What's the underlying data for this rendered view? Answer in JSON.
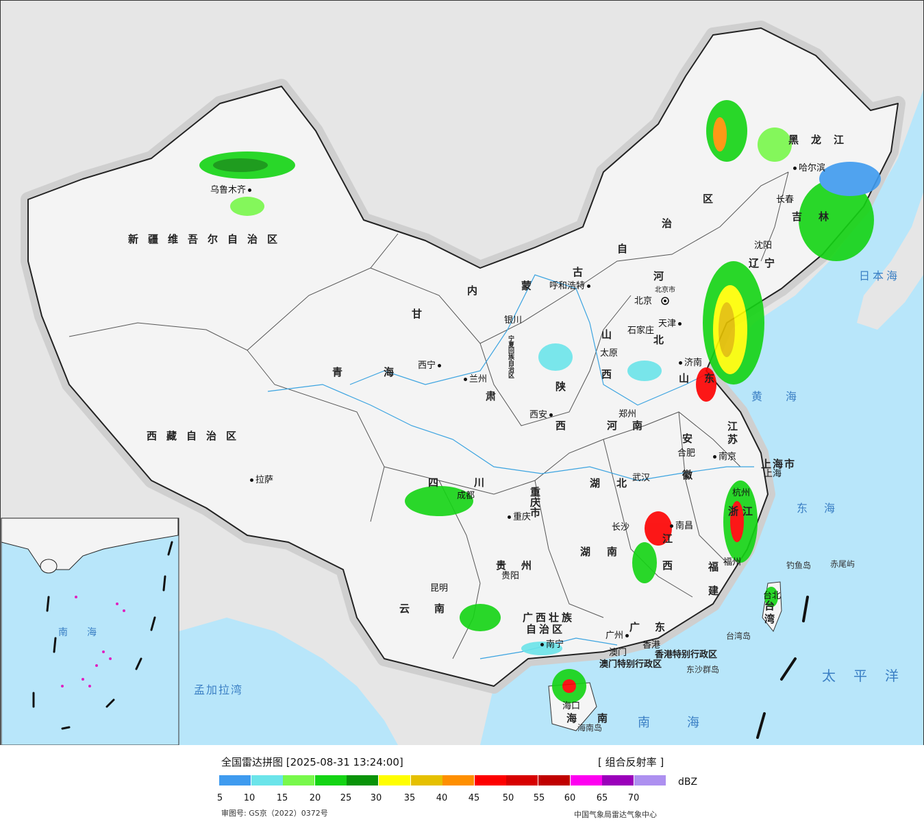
{
  "map": {
    "provinces": [
      {
        "id": "xinjiang",
        "text": "新疆维吾尔自治区"
      },
      {
        "id": "xizang",
        "text": "西藏自治区"
      },
      {
        "id": "qinghai",
        "text": "青海"
      },
      {
        "id": "gansu",
        "text": "甘"
      },
      {
        "id": "gansu2",
        "text": "肃"
      },
      {
        "id": "neimenggu1",
        "text": "内"
      },
      {
        "id": "neimenggu2",
        "text": "蒙"
      },
      {
        "id": "neimenggu3",
        "text": "古"
      },
      {
        "id": "neimenggu4",
        "text": "自"
      },
      {
        "id": "neimenggu5",
        "text": "治"
      },
      {
        "id": "neimenggu6",
        "text": "区"
      },
      {
        "id": "heilongjiang",
        "text": "黑龙江"
      },
      {
        "id": "jilin",
        "text": "吉林"
      },
      {
        "id": "liaoning",
        "text": "辽宁"
      },
      {
        "id": "hebei1",
        "text": "河"
      },
      {
        "id": "hebei2",
        "text": "北"
      },
      {
        "id": "shanxi1",
        "text": "山"
      },
      {
        "id": "shanxi2",
        "text": "西"
      },
      {
        "id": "shandong",
        "text": "山东"
      },
      {
        "id": "shaanxi1",
        "text": "陕"
      },
      {
        "id": "shaanxi2",
        "text": "西"
      },
      {
        "id": "henan",
        "text": "河南"
      },
      {
        "id": "jiangsu",
        "text": "江苏"
      },
      {
        "id": "anhui1",
        "text": "安"
      },
      {
        "id": "anhui2",
        "text": "徽"
      },
      {
        "id": "shanghai",
        "text": "上海市"
      },
      {
        "id": "zhejiang",
        "text": "浙江"
      },
      {
        "id": "hubei",
        "text": "湖北"
      },
      {
        "id": "sichuan",
        "text": "四川"
      },
      {
        "id": "chongqing",
        "text": "重庆市"
      },
      {
        "id": "hunan",
        "text": "湖南"
      },
      {
        "id": "jiangxi1",
        "text": "江"
      },
      {
        "id": "jiangxi2",
        "text": "西"
      },
      {
        "id": "fujian",
        "text": "福建"
      },
      {
        "id": "guizhou",
        "text": "贵州"
      },
      {
        "id": "yunnan",
        "text": "云南"
      },
      {
        "id": "guangxi1",
        "text": "广西壮族"
      },
      {
        "id": "guangxi2",
        "text": "自治区"
      },
      {
        "id": "guangdong",
        "text": "广东"
      },
      {
        "id": "hainan",
        "text": "海南"
      },
      {
        "id": "taiwan",
        "text": "台湾"
      },
      {
        "id": "ningxia",
        "text": "宁夏回族自治区"
      },
      {
        "id": "hk",
        "text": "香港特别行政区"
      },
      {
        "id": "macau",
        "text": "澳门特别行政区"
      }
    ],
    "cities": [
      {
        "id": "urumqi",
        "text": "乌鲁木齐"
      },
      {
        "id": "lhasa",
        "text": "拉萨"
      },
      {
        "id": "xining",
        "text": "西宁"
      },
      {
        "id": "lanzhou",
        "text": "兰州"
      },
      {
        "id": "yinchuan",
        "text": "银川"
      },
      {
        "id": "hohhot",
        "text": "呼和浩特"
      },
      {
        "id": "beijing",
        "text": "北京"
      },
      {
        "id": "beijing_city",
        "text": "北京市"
      },
      {
        "id": "tianjin",
        "text": "天津"
      },
      {
        "id": "shijiazhuang",
        "text": "石家庄"
      },
      {
        "id": "taiyuan",
        "text": "太原"
      },
      {
        "id": "jinan",
        "text": "济南"
      },
      {
        "id": "xian",
        "text": "西安"
      },
      {
        "id": "zhengzhou",
        "text": "郑州"
      },
      {
        "id": "hefei",
        "text": "合肥"
      },
      {
        "id": "nanjing",
        "text": "南京"
      },
      {
        "id": "shanghai_c",
        "text": "上海"
      },
      {
        "id": "hangzhou",
        "text": "杭州"
      },
      {
        "id": "wuhan",
        "text": "武汉"
      },
      {
        "id": "chengdu",
        "text": "成都"
      },
      {
        "id": "chongqing_c",
        "text": "重庆"
      },
      {
        "id": "changsha",
        "text": "长沙"
      },
      {
        "id": "nanchang",
        "text": "南昌"
      },
      {
        "id": "fuzhou",
        "text": "福州"
      },
      {
        "id": "guiyang",
        "text": "贵阳"
      },
      {
        "id": "kunming",
        "text": "昆明"
      },
      {
        "id": "nanning",
        "text": "南宁"
      },
      {
        "id": "guangzhou",
        "text": "广州"
      },
      {
        "id": "hongkong",
        "text": "香港"
      },
      {
        "id": "macao",
        "text": "澳门"
      },
      {
        "id": "haikou",
        "text": "海口"
      },
      {
        "id": "taipei",
        "text": "台北"
      },
      {
        "id": "harbin",
        "text": "哈尔滨"
      },
      {
        "id": "changchun",
        "text": "长春"
      },
      {
        "id": "shenyang",
        "text": "沈阳"
      }
    ],
    "seas": [
      {
        "id": "japan_sea",
        "text": "日本海"
      },
      {
        "id": "yellow_sea",
        "text": "黄海"
      },
      {
        "id": "east_sea",
        "text": "东海"
      },
      {
        "id": "pacific",
        "text": "太平洋"
      },
      {
        "id": "south_sea",
        "text": "南海"
      },
      {
        "id": "bengal",
        "text": "孟加拉湾"
      },
      {
        "id": "inset_sea",
        "text": "南海"
      }
    ],
    "islands": [
      {
        "id": "diaoyu",
        "text": "钓鱼岛"
      },
      {
        "id": "chiwei",
        "text": "赤尾屿"
      },
      {
        "id": "taiwan_isl",
        "text": "台湾岛"
      },
      {
        "id": "dongsha",
        "text": "东沙群岛"
      },
      {
        "id": "hainan_isl",
        "text": "海南岛"
      }
    ]
  },
  "legend": {
    "title": "全国雷达拼图 [2025-08-31 13:24:00]",
    "product": "[ 组合反射率 ]",
    "unit": "dBZ",
    "approval": "审图号: GS京（2022）0372号",
    "source": "中国气象局雷达气象中心",
    "ticks": [
      "5",
      "10",
      "15",
      "20",
      "25",
      "30",
      "35",
      "40",
      "45",
      "50",
      "55",
      "60",
      "65",
      "70"
    ],
    "colors": [
      "#3f9bef",
      "#6be4ea",
      "#78f84b",
      "#14d414",
      "#099309",
      "#fffe00",
      "#e5c000",
      "#fe8f00",
      "#fd0000",
      "#d70000",
      "#c00000",
      "#fd00f0",
      "#9a00ba",
      "#ad90f0"
    ]
  }
}
